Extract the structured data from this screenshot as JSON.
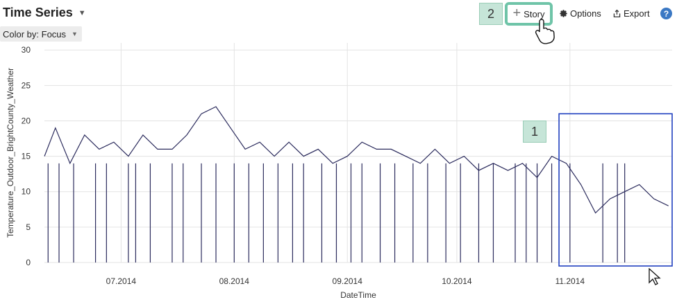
{
  "header": {
    "title": "Time Series",
    "color_by": "Color by: Focus"
  },
  "toolbar": {
    "story_label": "Story",
    "options_label": "Options",
    "export_label": "Export",
    "help_label": "?"
  },
  "annotations": {
    "badge_1": "1",
    "badge_2": "2"
  },
  "chart_data": {
    "type": "line",
    "xlabel": "DateTime",
    "ylabel": "Temperature_Outdoor_BrightCounty_Weather",
    "ylim": [
      0,
      31
    ],
    "yticks": [
      0,
      5,
      10,
      15,
      20,
      25,
      30
    ],
    "xticks": [
      "07.2014",
      "08.2014",
      "09.2014",
      "10.2014",
      "11.2014"
    ],
    "xrange": [
      "2014-06-10",
      "2014-11-29"
    ],
    "grid": true,
    "series_color": "#2a2a5c",
    "selection_color": "#1f3fbf",
    "series": [
      {
        "values": [
          {
            "x": "2014-06-10",
            "y": 15
          },
          {
            "x": "2014-06-13",
            "y": 19
          },
          {
            "x": "2014-06-17",
            "y": 14
          },
          {
            "x": "2014-06-21",
            "y": 18
          },
          {
            "x": "2014-06-25",
            "y": 16
          },
          {
            "x": "2014-06-29",
            "y": 17
          },
          {
            "x": "2014-07-03",
            "y": 15
          },
          {
            "x": "2014-07-07",
            "y": 18
          },
          {
            "x": "2014-07-11",
            "y": 16
          },
          {
            "x": "2014-07-15",
            "y": 16
          },
          {
            "x": "2014-07-19",
            "y": 18
          },
          {
            "x": "2014-07-23",
            "y": 21
          },
          {
            "x": "2014-07-27",
            "y": 22
          },
          {
            "x": "2014-07-31",
            "y": 19
          },
          {
            "x": "2014-08-04",
            "y": 16
          },
          {
            "x": "2014-08-08",
            "y": 17
          },
          {
            "x": "2014-08-12",
            "y": 15
          },
          {
            "x": "2014-08-16",
            "y": 17
          },
          {
            "x": "2014-08-20",
            "y": 15
          },
          {
            "x": "2014-08-24",
            "y": 16
          },
          {
            "x": "2014-08-28",
            "y": 14
          },
          {
            "x": "2014-09-01",
            "y": 15
          },
          {
            "x": "2014-09-05",
            "y": 17
          },
          {
            "x": "2014-09-09",
            "y": 16
          },
          {
            "x": "2014-09-13",
            "y": 16
          },
          {
            "x": "2014-09-17",
            "y": 15
          },
          {
            "x": "2014-09-21",
            "y": 14
          },
          {
            "x": "2014-09-25",
            "y": 16
          },
          {
            "x": "2014-09-29",
            "y": 14
          },
          {
            "x": "2014-10-03",
            "y": 15
          },
          {
            "x": "2014-10-07",
            "y": 13
          },
          {
            "x": "2014-10-11",
            "y": 14
          },
          {
            "x": "2014-10-15",
            "y": 13
          },
          {
            "x": "2014-10-19",
            "y": 14
          },
          {
            "x": "2014-10-23",
            "y": 12
          },
          {
            "x": "2014-10-27",
            "y": 15
          },
          {
            "x": "2014-10-31",
            "y": 14
          },
          {
            "x": "2014-11-04",
            "y": 11
          },
          {
            "x": "2014-11-08",
            "y": 7
          },
          {
            "x": "2014-11-12",
            "y": 9
          },
          {
            "x": "2014-11-16",
            "y": 10
          },
          {
            "x": "2014-11-20",
            "y": 11
          },
          {
            "x": "2014-11-24",
            "y": 9
          },
          {
            "x": "2014-11-28",
            "y": 8
          }
        ],
        "dropouts": [
          "2014-06-11",
          "2014-06-14",
          "2014-06-18",
          "2014-06-24",
          "2014-06-27",
          "2014-07-03",
          "2014-07-05",
          "2014-07-09",
          "2014-07-15",
          "2014-07-18",
          "2014-07-23",
          "2014-07-27",
          "2014-08-01",
          "2014-08-05",
          "2014-08-09",
          "2014-08-13",
          "2014-08-17",
          "2014-08-20",
          "2014-08-25",
          "2014-08-29",
          "2014-09-02",
          "2014-09-05",
          "2014-09-10",
          "2014-09-14",
          "2014-09-19",
          "2014-09-23",
          "2014-09-28",
          "2014-10-02",
          "2014-10-07",
          "2014-10-11",
          "2014-10-17",
          "2014-10-20",
          "2014-10-23",
          "2014-10-27",
          "2014-11-01",
          "2014-11-10",
          "2014-11-14",
          "2014-11-16"
        ],
        "selection": {
          "x_start": "2014-10-29",
          "x_end": "2014-11-29",
          "y_start": 0,
          "y_end": 21
        }
      }
    ]
  }
}
